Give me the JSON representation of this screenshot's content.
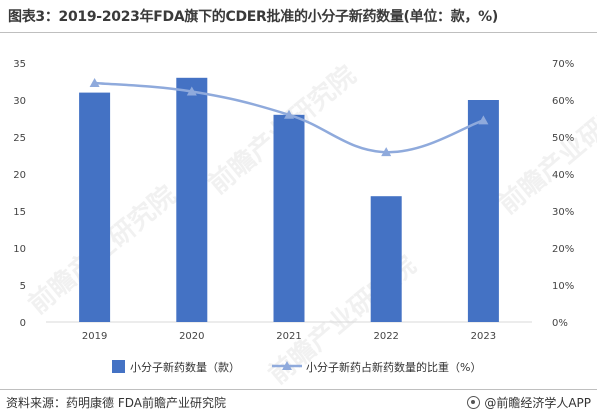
{
  "title": "图表3：2019-2023年FDA旗下的CDER批准的小分子新药数量(单位：款，%)",
  "footer": {
    "source": "资料来源：药明康德  FDA前瞻产业研究院",
    "app": "@前瞻经济学人APP"
  },
  "watermark": "前瞻产业研究院",
  "colors": {
    "bar": "#4472c4",
    "line": "#8faadc",
    "axis": "#d9d9d9"
  },
  "chart_data": {
    "type": "bar",
    "categories": [
      "2019",
      "2020",
      "2021",
      "2022",
      "2023"
    ],
    "series": [
      {
        "name": "小分子新药数量（款）",
        "type": "bar",
        "axis": "left",
        "values": [
          31,
          33,
          28,
          17,
          30
        ]
      },
      {
        "name": "小分子新药占新药数量的比重（%）",
        "type": "line",
        "axis": "right",
        "values": [
          64.6,
          62.3,
          56,
          45.9,
          54.5
        ]
      }
    ],
    "y_left": {
      "min": 0,
      "max": 35,
      "step": 5,
      "ticks": [
        "0",
        "5",
        "10",
        "15",
        "20",
        "25",
        "30",
        "35"
      ]
    },
    "y_right": {
      "min": 0,
      "max": 70,
      "step": 10,
      "ticks": [
        "0%",
        "10%",
        "20%",
        "30%",
        "40%",
        "50%",
        "60%",
        "70%"
      ]
    },
    "legend_position": "bottom",
    "grid": false
  }
}
